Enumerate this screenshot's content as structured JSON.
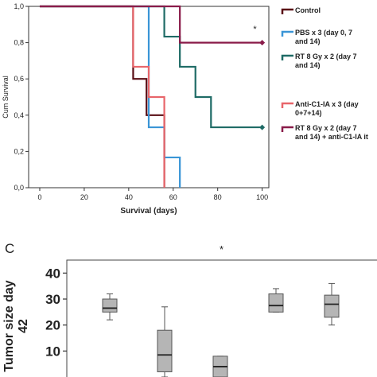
{
  "chart_data": [
    {
      "type": "line",
      "step": true,
      "ylabel": "Cum Survival",
      "xlabel": "Survival (days)",
      "xlim": [
        -5,
        103
      ],
      "ylim": [
        0,
        1.0
      ],
      "x_ticks": [
        "0",
        "20",
        "40",
        "60",
        "80",
        "100"
      ],
      "x_tick_values": [
        0,
        20,
        40,
        60,
        80,
        100
      ],
      "y_ticks": [
        "0,0",
        "0,2",
        "0,4",
        "0,6",
        "0,8",
        "1,0"
      ],
      "y_tick_values": [
        0,
        0.2,
        0.4,
        0.6,
        0.8,
        1.0
      ],
      "annotation": "*",
      "legend_position": "right",
      "series": [
        {
          "name": "Control",
          "color": "#5a0f16",
          "x": [
            0,
            42,
            42,
            48,
            48,
            56,
            56
          ],
          "y": [
            1.0,
            1.0,
            0.6,
            0.6,
            0.4,
            0.4,
            0.0
          ],
          "censored": []
        },
        {
          "name": "PBS x 3 (day 0, 7 and 14)",
          "color": "#3a95d6",
          "x": [
            0,
            49,
            49,
            56,
            56,
            63,
            63
          ],
          "y": [
            1.0,
            1.0,
            0.333,
            0.333,
            0.167,
            0.167,
            0.0
          ],
          "censored": []
        },
        {
          "name": "RT 8 Gy x 2 (day 7 and 14)",
          "color": "#1f6b66",
          "x": [
            0,
            56,
            56,
            63,
            63,
            70,
            70,
            77,
            77,
            100
          ],
          "y": [
            1.0,
            1.0,
            0.833,
            0.833,
            0.667,
            0.667,
            0.5,
            0.5,
            0.333,
            0.333
          ],
          "censored": [
            [
              100,
              0.333
            ]
          ]
        },
        {
          "name": "Anti-C1-IA x 3 (day 0+7+14)",
          "color": "#e8656a",
          "x": [
            0,
            42,
            42,
            49,
            49,
            56,
            56
          ],
          "y": [
            1.0,
            1.0,
            0.667,
            0.667,
            0.5,
            0.5,
            0.0
          ],
          "censored": []
        },
        {
          "name": "RT 8 Gy x 2 (day 7 and 14) + anti-C1-IA it",
          "color": "#8a1c4a",
          "x": [
            0,
            63,
            63,
            100
          ],
          "y": [
            1.0,
            1.0,
            0.8,
            0.8
          ],
          "censored": [
            [
              100,
              0.8
            ]
          ]
        }
      ]
    },
    {
      "type": "box",
      "panel_label": "C",
      "ylabel": "Tumor size day 42",
      "ylim": [
        0,
        45
      ],
      "y_ticks": [
        "10",
        "20",
        "30",
        "40"
      ],
      "y_tick_values": [
        10,
        20,
        30,
        40
      ],
      "annotation": "*",
      "boxes": [
        {
          "min": 22,
          "q1": 25,
          "median": 26.5,
          "q3": 30,
          "max": 32
        },
        {
          "min": 0,
          "q1": 2,
          "median": 8.5,
          "q3": 18,
          "max": 27
        },
        {
          "min": 0,
          "q1": 0,
          "median": 4,
          "q3": 8,
          "max": 8
        },
        {
          "min": 25,
          "q1": 25,
          "median": 27.5,
          "q3": 32,
          "max": 34
        },
        {
          "min": 20,
          "q1": 23,
          "median": 28,
          "q3": 31.5,
          "max": 36
        }
      ]
    }
  ]
}
